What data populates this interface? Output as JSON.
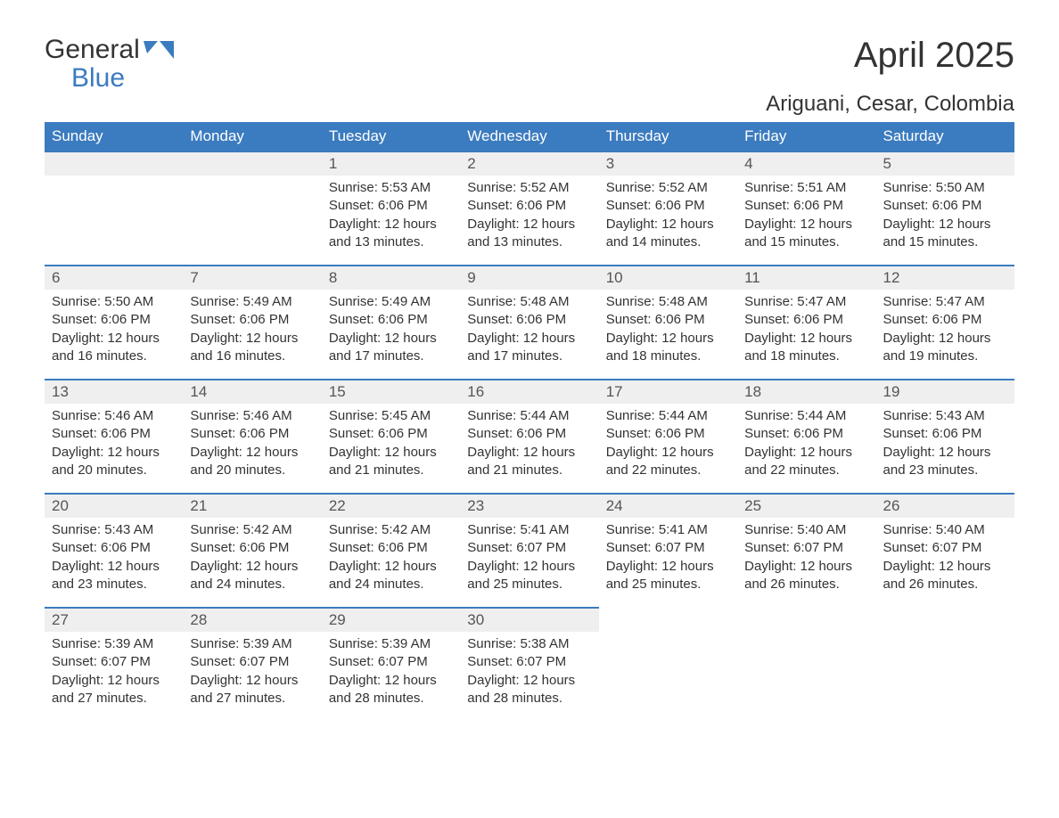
{
  "brand": {
    "word1": "General",
    "word2": "Blue"
  },
  "title": "April 2025",
  "location": "Ariguani, Cesar, Colombia",
  "colors": {
    "primary": "#3b7bbf",
    "header_bg": "#3b7bbf",
    "header_text": "#ffffff",
    "daynum_bg": "#efefef",
    "body_text": "#333333",
    "page_bg": "#ffffff"
  },
  "weekdays": [
    "Sunday",
    "Monday",
    "Tuesday",
    "Wednesday",
    "Thursday",
    "Friday",
    "Saturday"
  ],
  "weeks": [
    [
      null,
      null,
      {
        "d": "1",
        "sr": "5:53 AM",
        "ss": "6:06 PM",
        "dl": "12 hours and 13 minutes."
      },
      {
        "d": "2",
        "sr": "5:52 AM",
        "ss": "6:06 PM",
        "dl": "12 hours and 13 minutes."
      },
      {
        "d": "3",
        "sr": "5:52 AM",
        "ss": "6:06 PM",
        "dl": "12 hours and 14 minutes."
      },
      {
        "d": "4",
        "sr": "5:51 AM",
        "ss": "6:06 PM",
        "dl": "12 hours and 15 minutes."
      },
      {
        "d": "5",
        "sr": "5:50 AM",
        "ss": "6:06 PM",
        "dl": "12 hours and 15 minutes."
      }
    ],
    [
      {
        "d": "6",
        "sr": "5:50 AM",
        "ss": "6:06 PM",
        "dl": "12 hours and 16 minutes."
      },
      {
        "d": "7",
        "sr": "5:49 AM",
        "ss": "6:06 PM",
        "dl": "12 hours and 16 minutes."
      },
      {
        "d": "8",
        "sr": "5:49 AM",
        "ss": "6:06 PM",
        "dl": "12 hours and 17 minutes."
      },
      {
        "d": "9",
        "sr": "5:48 AM",
        "ss": "6:06 PM",
        "dl": "12 hours and 17 minutes."
      },
      {
        "d": "10",
        "sr": "5:48 AM",
        "ss": "6:06 PM",
        "dl": "12 hours and 18 minutes."
      },
      {
        "d": "11",
        "sr": "5:47 AM",
        "ss": "6:06 PM",
        "dl": "12 hours and 18 minutes."
      },
      {
        "d": "12",
        "sr": "5:47 AM",
        "ss": "6:06 PM",
        "dl": "12 hours and 19 minutes."
      }
    ],
    [
      {
        "d": "13",
        "sr": "5:46 AM",
        "ss": "6:06 PM",
        "dl": "12 hours and 20 minutes."
      },
      {
        "d": "14",
        "sr": "5:46 AM",
        "ss": "6:06 PM",
        "dl": "12 hours and 20 minutes."
      },
      {
        "d": "15",
        "sr": "5:45 AM",
        "ss": "6:06 PM",
        "dl": "12 hours and 21 minutes."
      },
      {
        "d": "16",
        "sr": "5:44 AM",
        "ss": "6:06 PM",
        "dl": "12 hours and 21 minutes."
      },
      {
        "d": "17",
        "sr": "5:44 AM",
        "ss": "6:06 PM",
        "dl": "12 hours and 22 minutes."
      },
      {
        "d": "18",
        "sr": "5:44 AM",
        "ss": "6:06 PM",
        "dl": "12 hours and 22 minutes."
      },
      {
        "d": "19",
        "sr": "5:43 AM",
        "ss": "6:06 PM",
        "dl": "12 hours and 23 minutes."
      }
    ],
    [
      {
        "d": "20",
        "sr": "5:43 AM",
        "ss": "6:06 PM",
        "dl": "12 hours and 23 minutes."
      },
      {
        "d": "21",
        "sr": "5:42 AM",
        "ss": "6:06 PM",
        "dl": "12 hours and 24 minutes."
      },
      {
        "d": "22",
        "sr": "5:42 AM",
        "ss": "6:06 PM",
        "dl": "12 hours and 24 minutes."
      },
      {
        "d": "23",
        "sr": "5:41 AM",
        "ss": "6:07 PM",
        "dl": "12 hours and 25 minutes."
      },
      {
        "d": "24",
        "sr": "5:41 AM",
        "ss": "6:07 PM",
        "dl": "12 hours and 25 minutes."
      },
      {
        "d": "25",
        "sr": "5:40 AM",
        "ss": "6:07 PM",
        "dl": "12 hours and 26 minutes."
      },
      {
        "d": "26",
        "sr": "5:40 AM",
        "ss": "6:07 PM",
        "dl": "12 hours and 26 minutes."
      }
    ],
    [
      {
        "d": "27",
        "sr": "5:39 AM",
        "ss": "6:07 PM",
        "dl": "12 hours and 27 minutes."
      },
      {
        "d": "28",
        "sr": "5:39 AM",
        "ss": "6:07 PM",
        "dl": "12 hours and 27 minutes."
      },
      {
        "d": "29",
        "sr": "5:39 AM",
        "ss": "6:07 PM",
        "dl": "12 hours and 28 minutes."
      },
      {
        "d": "30",
        "sr": "5:38 AM",
        "ss": "6:07 PM",
        "dl": "12 hours and 28 minutes."
      },
      null,
      null,
      null
    ]
  ],
  "labels": {
    "sunrise": "Sunrise: ",
    "sunset": "Sunset: ",
    "daylight": "Daylight: "
  }
}
